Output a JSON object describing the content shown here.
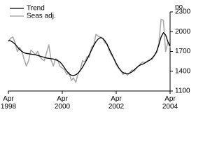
{
  "chart_data": {
    "type": "line",
    "y_label": "no.",
    "categories": [
      "Apr 1998",
      null,
      null,
      null,
      null,
      null,
      null,
      null,
      null,
      null,
      null,
      null,
      null,
      null,
      null,
      null,
      null,
      null,
      null,
      null,
      null,
      null,
      null,
      null,
      "Apr 2000",
      null,
      null,
      null,
      null,
      null,
      null,
      null,
      null,
      null,
      null,
      null,
      null,
      null,
      null,
      null,
      null,
      null,
      null,
      null,
      null,
      null,
      null,
      null,
      "Apr 2002",
      null,
      null,
      null,
      null,
      null,
      null,
      null,
      null,
      null,
      null,
      null,
      null,
      null,
      null,
      null,
      null,
      null,
      null,
      null,
      null,
      null,
      null,
      null,
      "Apr 2004"
    ],
    "series": [
      {
        "name": "Trend",
        "color": "#000000",
        "width": 1.3,
        "values": [
          1870,
          1860,
          1840,
          1810,
          1770,
          1730,
          1700,
          1680,
          1670,
          1665,
          1660,
          1655,
          1650,
          1640,
          1630,
          1620,
          1610,
          1600,
          1595,
          1590,
          1585,
          1575,
          1560,
          1540,
          1500,
          1450,
          1400,
          1360,
          1340,
          1335,
          1345,
          1370,
          1410,
          1460,
          1520,
          1580,
          1650,
          1720,
          1790,
          1850,
          1890,
          1910,
          1900,
          1860,
          1800,
          1730,
          1660,
          1590,
          1520,
          1460,
          1410,
          1380,
          1365,
          1360,
          1370,
          1390,
          1420,
          1450,
          1480,
          1500,
          1510,
          1530,
          1550,
          1570,
          1600,
          1640,
          1700,
          1800,
          1920,
          1985,
          1950,
          1850,
          1780
        ]
      },
      {
        "name": "Seas adj.",
        "color": "#aaaaaa",
        "width": 1.6,
        "values": [
          1850,
          1900,
          1920,
          1830,
          1700,
          1760,
          1700,
          1580,
          1480,
          1560,
          1720,
          1690,
          1650,
          1700,
          1620,
          1580,
          1560,
          1680,
          1800,
          1570,
          1480,
          1590,
          1570,
          1470,
          1450,
          1420,
          1350,
          1380,
          1260,
          1300,
          1230,
          1360,
          1420,
          1560,
          1540,
          1620,
          1610,
          1760,
          1800,
          1960,
          1930,
          1920,
          1900,
          1830,
          1820,
          1700,
          1640,
          1590,
          1500,
          1450,
          1420,
          1350,
          1380,
          1340,
          1380,
          1420,
          1400,
          1450,
          1480,
          1520,
          1540,
          1530,
          1560,
          1570,
          1580,
          1640,
          1680,
          1820,
          2190,
          2170,
          1700,
          1840,
          1760
        ]
      }
    ],
    "ylim": [
      1100,
      2300
    ],
    "yticks": [
      1100,
      1400,
      1700,
      2000,
      2300
    ],
    "grid": false,
    "legend": "upper left"
  }
}
